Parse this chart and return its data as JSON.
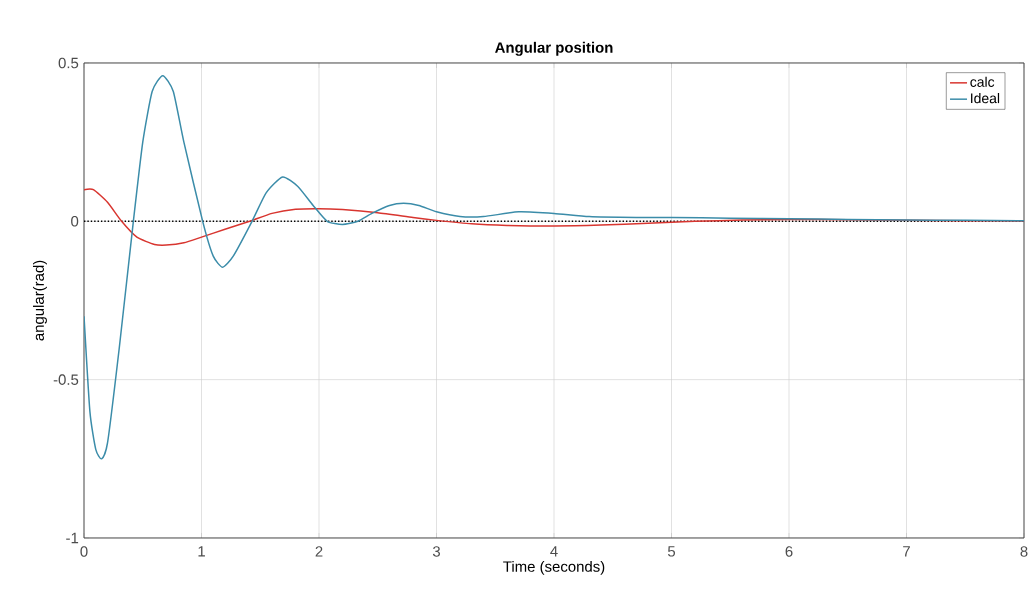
{
  "chart_data": {
    "type": "line",
    "title": "Angular position",
    "xlabel": "Time (seconds)",
    "ylabel": "angular(rad)",
    "xlim": [
      0,
      8
    ],
    "ylim": [
      -1,
      0.5
    ],
    "xticks": [
      0,
      1,
      2,
      3,
      4,
      5,
      6,
      7,
      8
    ],
    "yticks": [
      -1,
      -0.5,
      0,
      0.5
    ],
    "grid": true,
    "legend": "top right",
    "line_style": "solid",
    "ref_lines": [
      {
        "axis": "y",
        "value": 0,
        "color": "#000000",
        "line_style": "dotted"
      }
    ],
    "series": [
      {
        "name": "calc",
        "color": "#d8352f",
        "x": [
          0,
          0.08,
          0.2,
          0.32,
          0.45,
          0.6,
          0.7,
          0.85,
          1.0,
          1.2,
          1.41,
          1.6,
          1.8,
          2.0,
          2.2,
          2.5,
          2.8,
          3.0,
          3.3,
          3.6,
          4.0,
          4.4,
          4.8,
          5.2,
          5.6,
          6.0,
          6.5,
          7.0,
          7.5,
          8.0
        ],
        "values": [
          0.1,
          0.1,
          0.06,
          0.0,
          -0.05,
          -0.073,
          -0.075,
          -0.068,
          -0.05,
          -0.025,
          0.0,
          0.025,
          0.038,
          0.04,
          0.037,
          0.027,
          0.012,
          0.003,
          -0.008,
          -0.013,
          -0.015,
          -0.012,
          -0.006,
          0.0,
          0.004,
          0.006,
          0.005,
          0.003,
          0.002,
          0.001
        ]
      },
      {
        "name": "Ideal",
        "color": "#3b8ca9",
        "x": [
          0,
          0.05,
          0.1,
          0.15,
          0.2,
          0.3,
          0.42,
          0.5,
          0.58,
          0.67,
          0.76,
          0.85,
          1.01,
          1.1,
          1.18,
          1.27,
          1.43,
          1.55,
          1.69,
          1.82,
          1.95,
          2.07,
          2.2,
          2.33,
          2.45,
          2.6,
          2.72,
          2.85,
          3.0,
          3.2,
          3.4,
          3.7,
          4.0,
          4.3,
          4.7,
          5.0,
          5.5,
          6.0,
          6.5,
          7.0,
          7.5,
          8.0
        ],
        "values": [
          -0.3,
          -0.6,
          -0.72,
          -0.75,
          -0.7,
          -0.4,
          0.0,
          0.25,
          0.41,
          0.46,
          0.41,
          0.25,
          0.0,
          -0.11,
          -0.145,
          -0.11,
          0.0,
          0.09,
          0.14,
          0.11,
          0.05,
          0.0,
          -0.01,
          0.0,
          0.025,
          0.05,
          0.057,
          0.05,
          0.03,
          0.015,
          0.015,
          0.03,
          0.025,
          0.015,
          0.012,
          0.012,
          0.01,
          0.008,
          0.006,
          0.004,
          0.003,
          0.002
        ]
      }
    ]
  }
}
